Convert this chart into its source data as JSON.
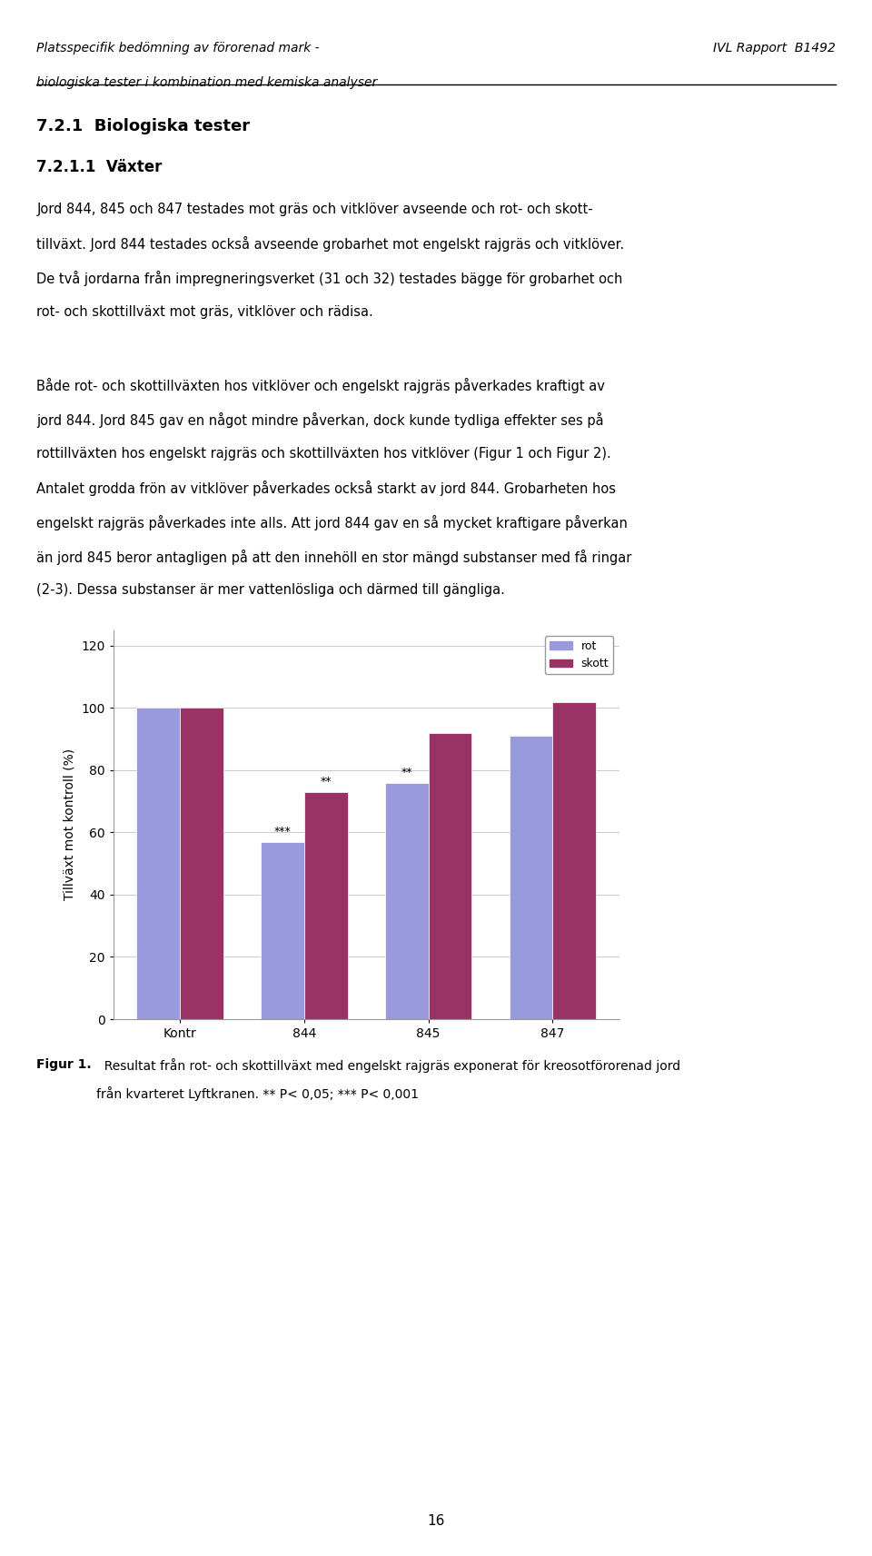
{
  "categories": [
    "Kontr",
    "844",
    "845",
    "847"
  ],
  "rot_values": [
    100,
    57,
    76,
    91
  ],
  "skott_values": [
    100,
    73,
    92,
    102
  ],
  "rot_color": "#9999dd",
  "skott_color": "#993366",
  "ylabel": "Tillväxt mot kontroll (%)",
  "ylim": [
    0,
    125
  ],
  "yticks": [
    0,
    20,
    40,
    60,
    80,
    100,
    120
  ],
  "legend_rot": "rot",
  "legend_skott": "skott",
  "bar_width": 0.35,
  "annotations": [
    {
      "idx": 1,
      "which": "rot",
      "text": "***"
    },
    {
      "idx": 1,
      "which": "skott",
      "text": "**"
    },
    {
      "idx": 2,
      "which": "rot",
      "text": "**"
    }
  ],
  "header_left_line1": "Platsspecifik bedömning av förorenad mark -",
  "header_left_line2": "biologiska tester i kombination med kemiska analyser",
  "header_right": "IVL Rapport  B1492",
  "section_title": "7.2.1  Biologiska tester",
  "subsection_title": "7.2.1.1  Växter",
  "body_text": [
    "Jord 844, 845 och 847 testades mot gräs och vitklöver avseende och rot- och skott-",
    "tillväxt. Jord 844 testades också avseende grobarhet mot engelskt rajgräs och vitklöver.",
    "De två jordarna från impregneringsverket (31 och 32) testades bägge för grobarhet och",
    "rot- och skottillväxt mot gräs, vitklöver och rädisa."
  ],
  "body_text2": [
    "Både rot- och skottillväxten hos vitklöver och engelskt rajgräs påverkades kraftigt av",
    "jord 844. Jord 845 gav en något mindre påverkan, dock kunde tydliga effekter ses på",
    "rottillväxten hos engelskt rajgräs och skottillväxten hos vitklöver (Figur 1 och Figur 2).",
    "Antalet grodda frön av vitklöver påverkades också starkt av jord 844. Grobarheten hos",
    "engelskt rajgräs påverkades inte alls. Att jord 844 gav en så mycket kraftigare påverkan",
    "än jord 845 beror antagligen på att den innehöll en stor mängd substanser med få ringar",
    "(2-3). Dessa substanser är mer vattenlösliga och därmed till gängliga."
  ],
  "figure_caption_bold": "Figur 1.",
  "figure_caption_text": "  Resultat från rot- och skottillväxt med engelskt rajgräs exponerat för kreosotförorenad jord",
  "figure_caption_line2": "från kvarteret Lyftkranen. ** P< 0,05; *** P< 0,001",
  "page_number": "16",
  "background_color": "#ffffff",
  "chart_bg_color": "#ffffff",
  "chart_border_color": "#aaaaaa"
}
